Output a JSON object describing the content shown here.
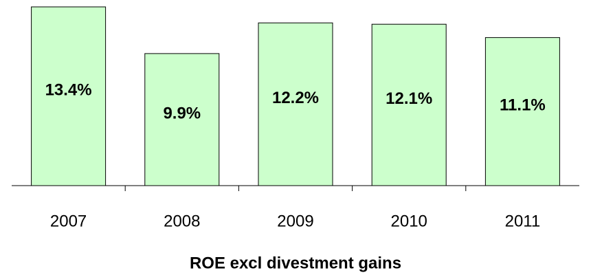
{
  "chart_data": {
    "type": "bar",
    "title": "ROE excl divestment gains",
    "categories": [
      "2007",
      "2008",
      "2009",
      "2010",
      "2011"
    ],
    "values": [
      13.4,
      9.9,
      12.2,
      12.1,
      11.1
    ],
    "value_labels": [
      "13.4%",
      "9.9%",
      "12.2%",
      "12.1%",
      "11.1%"
    ],
    "color": "#ccffcc"
  }
}
